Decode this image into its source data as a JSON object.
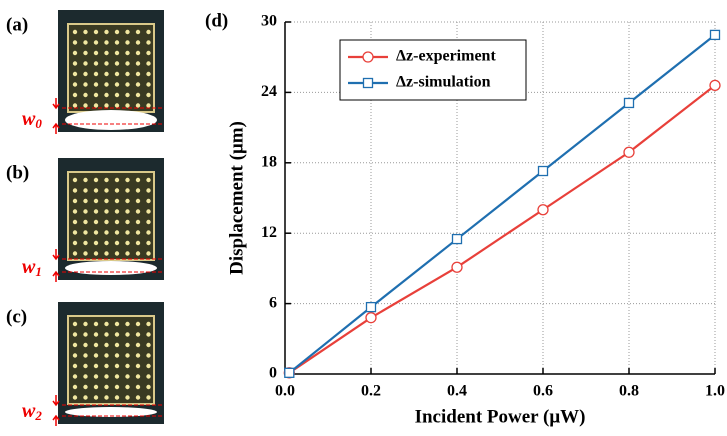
{
  "panels": {
    "labels": [
      "(a)",
      "(b)",
      "(c)"
    ],
    "widths": [
      {
        "symbol": "w",
        "subscript": "0"
      },
      {
        "symbol": "w",
        "subscript": "1"
      },
      {
        "symbol": "w",
        "subscript": "2"
      }
    ]
  },
  "chart_data": {
    "type": "line",
    "panel_label": "(d)",
    "x_label": "Incident Power (μW)",
    "y_label": "Displacement (μm)",
    "x": [
      0.01,
      0.2,
      0.4,
      0.6,
      0.8,
      1.0
    ],
    "series": [
      {
        "name": "Δz-experiment",
        "color": "#e8403a",
        "marker": "circle",
        "values": [
          0.1,
          4.8,
          9.1,
          14.0,
          18.9,
          24.6
        ]
      },
      {
        "name": "Δz-simulation",
        "color": "#1f6fb0",
        "marker": "square",
        "values": [
          0.1,
          5.7,
          11.5,
          17.3,
          23.1,
          28.9
        ]
      }
    ],
    "xlim": [
      0,
      1
    ],
    "xticks": [
      {
        "value": 0,
        "label": "0.0"
      },
      0.2,
      0.4,
      0.6,
      0.8,
      {
        "value": 1,
        "label": "1.0"
      }
    ],
    "ylim": [
      0,
      30
    ],
    "yticks": [
      0,
      6,
      12,
      18,
      24,
      30
    ],
    "grid": true,
    "legend": "upper left"
  }
}
